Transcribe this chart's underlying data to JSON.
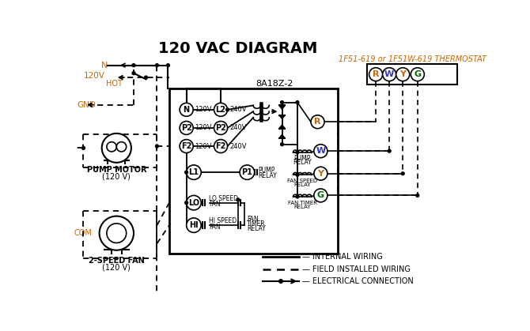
{
  "title": "120 VAC DIAGRAM",
  "title_fontsize": 14,
  "title_fontweight": "bold",
  "bg_color": "#ffffff",
  "text_color": "#000000",
  "orange_color": "#cc6600",
  "blue_color": "#3333cc",
  "green_color": "#006600",
  "thermostat_label": "1F51-619 or 1F51W-619 THERMOSTAT",
  "controller_label": "8A18Z-2",
  "figsize": [
    6.7,
    4.19
  ],
  "dpi": 100
}
